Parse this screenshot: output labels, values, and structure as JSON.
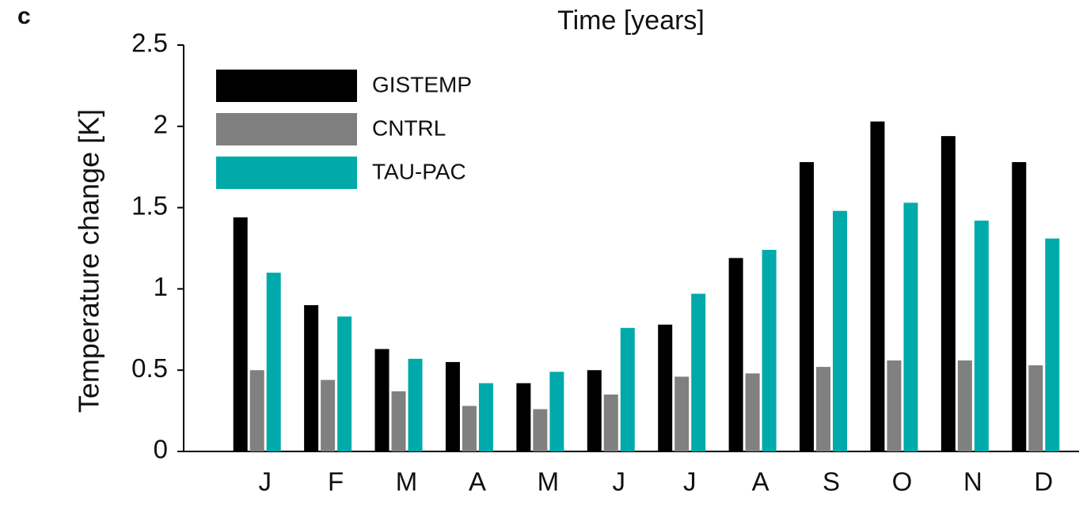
{
  "chart_data": {
    "type": "bar",
    "panel_label": "c",
    "title": "Time [years]",
    "ylabel": "Temperature change [K]",
    "categories": [
      "J",
      "F",
      "M",
      "A",
      "M",
      "J",
      "J",
      "A",
      "S",
      "O",
      "N",
      "D"
    ],
    "series": [
      {
        "name": "GISTEMP",
        "color": "#000000",
        "values": [
          1.44,
          0.9,
          0.63,
          0.55,
          0.42,
          0.5,
          0.78,
          1.19,
          1.78,
          2.03,
          1.94,
          1.78
        ]
      },
      {
        "name": "CNTRL",
        "color": "#808080",
        "values": [
          0.5,
          0.44,
          0.37,
          0.28,
          0.26,
          0.35,
          0.46,
          0.48,
          0.52,
          0.56,
          0.56,
          0.53
        ]
      },
      {
        "name": "TAU-PAC",
        "color": "#00aaaa",
        "values": [
          1.1,
          0.83,
          0.57,
          0.42,
          0.49,
          0.76,
          0.97,
          1.24,
          1.48,
          1.53,
          1.42,
          1.31
        ]
      }
    ],
    "ylim": [
      0,
      2.5
    ],
    "yticks": [
      0,
      0.5,
      1,
      1.5,
      2,
      2.5
    ],
    "grid": false,
    "legend": "upper left"
  }
}
